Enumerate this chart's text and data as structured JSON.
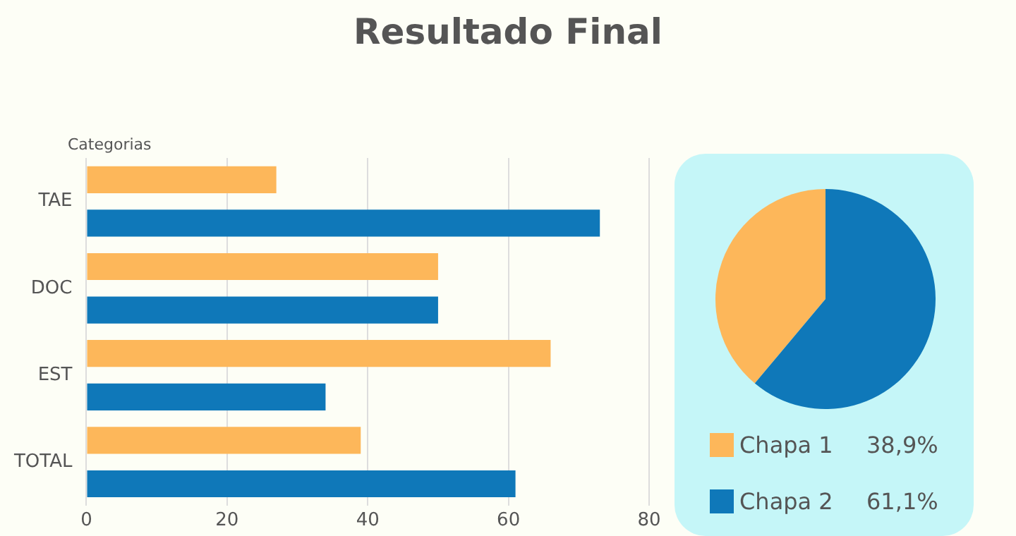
{
  "chart_data": [
    {
      "type": "bar",
      "title": "Resultado Final",
      "orientation": "horizontal",
      "ylabel": "Categorias",
      "categories": [
        "TAE",
        "DOC",
        "EST",
        "TOTAL"
      ],
      "series": [
        {
          "color": "#fdb75a",
          "values": [
            27,
            50,
            66,
            39
          ]
        },
        {
          "color": "#0f78b9",
          "values": [
            73,
            50,
            34,
            61
          ]
        }
      ],
      "xlim": [
        0,
        80
      ],
      "xticks": [
        0,
        20,
        40,
        60,
        80
      ],
      "grid": "x",
      "legend": false
    },
    {
      "type": "pie",
      "categories": [
        "Chapa 1",
        "Chapa 2"
      ],
      "values": [
        38.9,
        61.1
      ],
      "colors": [
        "#fdb75a",
        "#0f78b9"
      ],
      "value_labels": [
        "38,9%",
        "61,1%"
      ],
      "legend": "bottom"
    }
  ]
}
